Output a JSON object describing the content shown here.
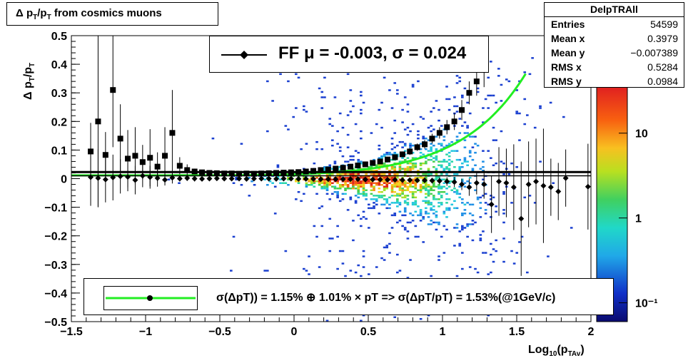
{
  "colors": {
    "data_points": "#000000",
    "fit_curve": "#22ee22",
    "mean_line": "#000000"
  },
  "title": {
    "main": "Δ p",
    "sub1": "T",
    "mid": "/p",
    "sub2": "T",
    "tail": " from cosmics muons"
  },
  "stats": {
    "name": "DelpTRAll",
    "rows": [
      {
        "label": "Entries",
        "value": "54599"
      },
      {
        "label": "Mean x",
        "value": "0.3979"
      },
      {
        "label": "Mean y",
        "value": "−0.007389"
      },
      {
        "label": "RMS x",
        "value": "0.5284"
      },
      {
        "label": "RMS y",
        "value": "0.0984"
      }
    ]
  },
  "legend": {
    "fit_text": "FF μ = -0.003, σ =   0.024",
    "resolution_text": "σ(ΔpT)) =  1.15% ⊕  1.01% × pT => σ(ΔpT/pT) =  1.53%(@1GeV/c)"
  },
  "chart_data": {
    "type": "heatmap",
    "title": "Δ pT/pT from cosmics muons",
    "xlabel": "Log10(pTAv)",
    "ylabel": "Δ pT/pT",
    "xlim": [
      -1.5,
      2
    ],
    "ylim": [
      -0.5,
      0.5
    ],
    "x_ticks": [
      "−1.5",
      "−1",
      "−0.5",
      "0",
      "0.5",
      "1",
      "1.5",
      "2"
    ],
    "y_ticks": [
      "−0.5",
      "−0.4",
      "−0.3",
      "−0.2",
      "−0.1",
      "0",
      "0.1",
      "0.2",
      "0.3",
      "0.4",
      "0.5"
    ],
    "colorbar": {
      "scale": "log",
      "labels": [
        "10⁻¹",
        "1",
        "10"
      ],
      "label_values": [
        0.1,
        1,
        10
      ]
    },
    "mean_line_y": 0.023,
    "mean_points": {
      "x": [
        -1.37,
        -1.32,
        -1.27,
        -1.22,
        -1.17,
        -1.12,
        -1.07,
        -1.02,
        -0.97,
        -0.92,
        -0.87,
        -0.82,
        -0.77,
        -0.72,
        -0.67,
        -0.62,
        -0.57,
        -0.52,
        -0.47,
        -0.42,
        -0.37,
        -0.32,
        -0.27,
        -0.22,
        -0.17,
        -0.12,
        -0.07,
        -0.02,
        0.03,
        0.08,
        0.13,
        0.18,
        0.23,
        0.28,
        0.33,
        0.38,
        0.43,
        0.48,
        0.53,
        0.58,
        0.63,
        0.68,
        0.73,
        0.78,
        0.83,
        0.88,
        0.93,
        0.98,
        1.03,
        1.08,
        1.13,
        1.18,
        1.23,
        1.28,
        1.33,
        1.38,
        1.43,
        1.48,
        1.53,
        1.58,
        1.63,
        1.68,
        1.73,
        1.78,
        1.83,
        1.98
      ],
      "y": [
        0.005,
        0.002,
        -0.003,
        0.004,
        0.008,
        0.006,
        -0.005,
        0.01,
        0.005,
        0.002,
        -0.004,
        0.003,
        0.0,
        0.002,
        0.0,
        -0.001,
        0.0,
        0.001,
        0.0,
        0.0,
        0.0,
        -0.001,
        0.0,
        0.0,
        0.0,
        -0.001,
        0.0,
        0.0,
        -0.001,
        -0.001,
        -0.001,
        -0.002,
        -0.002,
        -0.002,
        -0.002,
        -0.002,
        -0.002,
        -0.003,
        -0.003,
        -0.003,
        -0.004,
        -0.004,
        -0.005,
        -0.005,
        -0.006,
        -0.006,
        -0.007,
        -0.008,
        -0.01,
        -0.012,
        -0.02,
        -0.03,
        -0.015,
        -0.02,
        -0.09,
        -0.01,
        -0.015,
        -0.03,
        -0.14,
        -0.02,
        -0.01,
        -0.025,
        -0.03,
        -0.045,
        0.002,
        -0.028
      ],
      "yerr": [
        0.1,
        0.1,
        0.08,
        0.08,
        0.06,
        0.05,
        0.05,
        0.04,
        0.04,
        0.03,
        0.02,
        0.02,
        0.01,
        0.01,
        0.01,
        0.005,
        0.005,
        0.004,
        0.004,
        0.003,
        0.003,
        0.003,
        0.003,
        0.003,
        0.003,
        0.003,
        0.003,
        0.003,
        0.003,
        0.003,
        0.003,
        0.003,
        0.004,
        0.004,
        0.004,
        0.004,
        0.005,
        0.005,
        0.005,
        0.006,
        0.006,
        0.006,
        0.007,
        0.008,
        0.008,
        0.009,
        0.01,
        0.012,
        0.015,
        0.018,
        0.02,
        0.03,
        0.04,
        0.05,
        0.1,
        0.12,
        0.12,
        0.15,
        0.2,
        0.15,
        0.15,
        0.2,
        0.1,
        0.1,
        0.1,
        0.15
      ]
    },
    "sigma_points": {
      "x": [
        -1.37,
        -1.32,
        -1.27,
        -1.22,
        -1.17,
        -1.12,
        -1.07,
        -1.02,
        -0.97,
        -0.92,
        -0.87,
        -0.82,
        -0.77,
        -0.72,
        -0.67,
        -0.62,
        -0.57,
        -0.52,
        -0.47,
        -0.42,
        -0.37,
        -0.32,
        -0.27,
        -0.22,
        -0.17,
        -0.12,
        -0.07,
        -0.02,
        0.03,
        0.08,
        0.13,
        0.18,
        0.23,
        0.28,
        0.33,
        0.38,
        0.43,
        0.48,
        0.53,
        0.58,
        0.63,
        0.68,
        0.73,
        0.78,
        0.83,
        0.88,
        0.93,
        0.98,
        1.03,
        1.08,
        1.13,
        1.18,
        1.23,
        1.28
      ],
      "y": [
        0.095,
        0.2,
        0.083,
        0.31,
        0.14,
        0.07,
        0.08,
        0.058,
        0.073,
        0.042,
        0.08,
        0.16,
        0.045,
        0.03,
        0.025,
        0.022,
        0.02,
        0.019,
        0.018,
        0.018,
        0.017,
        0.018,
        0.017,
        0.018,
        0.019,
        0.02,
        0.021,
        0.022,
        0.023,
        0.025,
        0.027,
        0.03,
        0.032,
        0.035,
        0.038,
        0.042,
        0.046,
        0.05,
        0.055,
        0.06,
        0.067,
        0.075,
        0.085,
        0.095,
        0.11,
        0.12,
        0.14,
        0.16,
        0.18,
        0.2,
        0.24,
        0.3,
        0.34,
        0.4
      ],
      "yerr": [
        0.1,
        0.3,
        0.08,
        0.2,
        0.12,
        0.1,
        0.1,
        0.06,
        0.1,
        0.05,
        0.1,
        0.15,
        0.03,
        0.02,
        0.01,
        0.005,
        0.004,
        0.003,
        0.003,
        0.003,
        0.003,
        0.003,
        0.003,
        0.003,
        0.003,
        0.003,
        0.003,
        0.003,
        0.003,
        0.003,
        0.004,
        0.004,
        0.004,
        0.005,
        0.005,
        0.005,
        0.006,
        0.006,
        0.007,
        0.008,
        0.009,
        0.01,
        0.01,
        0.012,
        0.013,
        0.015,
        0.017,
        0.02,
        0.025,
        0.03,
        0.035,
        0.04,
        0.05,
        0.08
      ]
    },
    "fit_curve": {
      "model": "sqrt(a^2 + (b*pT)^2)",
      "a": 0.0115,
      "b": 0.0101,
      "x_range": [
        -1.5,
        1.58
      ]
    }
  }
}
